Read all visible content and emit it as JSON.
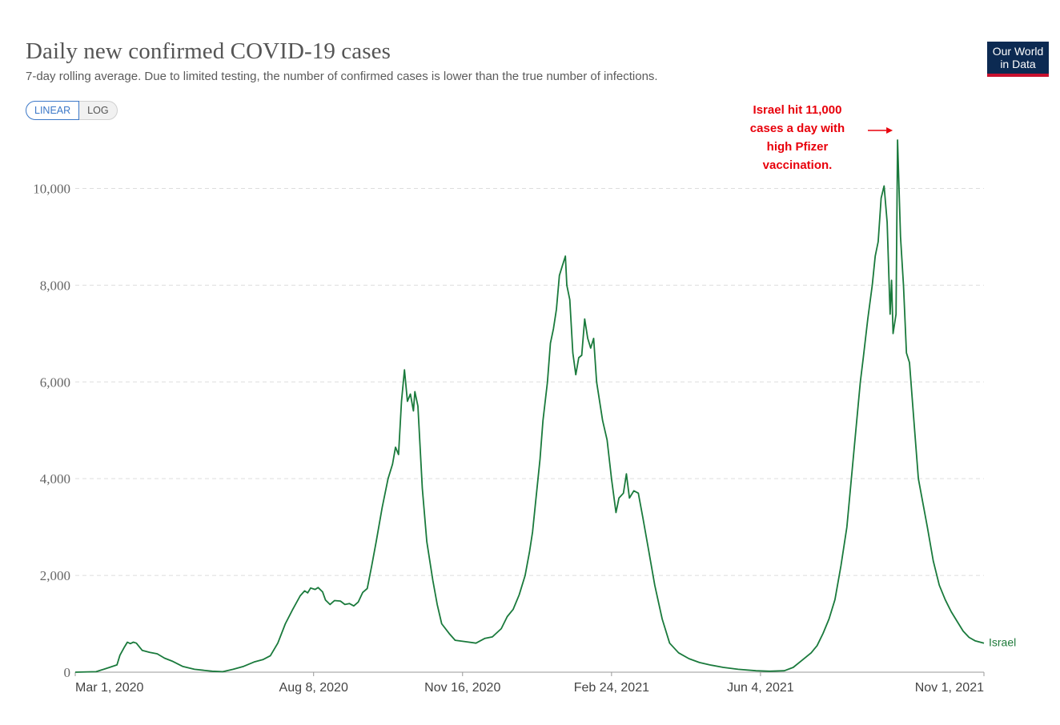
{
  "header": {
    "title": "Daily new confirmed COVID-19 cases",
    "subtitle": "7-day rolling average. Due to limited testing, the number of confirmed cases is lower than the true number of infections.",
    "logo_line1": "Our World",
    "logo_line2": "in Data"
  },
  "toggle": {
    "linear_label": "LINEAR",
    "log_label": "LOG",
    "selected": "LINEAR"
  },
  "colors": {
    "series": "#1a7a3c",
    "annotation": "#e8000b",
    "grid": "#dddddd",
    "logo_bg": "#0c2a52",
    "logo_bar": "#c8102e",
    "toggle_active": "#3c78c8"
  },
  "chart_data": {
    "type": "line",
    "title": "Daily new confirmed COVID-19 cases",
    "xlabel": "",
    "ylabel": "",
    "ylim": [
      0,
      11000
    ],
    "yticks": [
      0,
      2000,
      4000,
      6000,
      8000,
      10000
    ],
    "ytick_labels": [
      "0",
      "2,000",
      "4,000",
      "6,000",
      "8,000",
      "10,000"
    ],
    "xticks": [
      "2020-03-01",
      "2020-08-08",
      "2020-11-16",
      "2021-02-24",
      "2021-06-04",
      "2021-11-01"
    ],
    "xtick_labels": [
      "Mar 1, 2020",
      "Aug 8, 2020",
      "Nov 16, 2020",
      "Feb 24, 2021",
      "Jun 4, 2021",
      "Nov 1, 2021"
    ],
    "xlim": [
      "2020-03-01",
      "2021-11-01"
    ],
    "grid": "horizontal dashed",
    "series": [
      {
        "name": "Israel",
        "points": [
          [
            "2020-03-01",
            0
          ],
          [
            "2020-03-15",
            10
          ],
          [
            "2020-03-24",
            100
          ],
          [
            "2020-03-29",
            150
          ],
          [
            "2020-03-31",
            350
          ],
          [
            "2020-04-03",
            520
          ],
          [
            "2020-04-05",
            620
          ],
          [
            "2020-04-07",
            590
          ],
          [
            "2020-04-09",
            620
          ],
          [
            "2020-04-11",
            600
          ],
          [
            "2020-04-15",
            450
          ],
          [
            "2020-04-20",
            410
          ],
          [
            "2020-04-25",
            380
          ],
          [
            "2020-04-30",
            290
          ],
          [
            "2020-05-05",
            230
          ],
          [
            "2020-05-12",
            120
          ],
          [
            "2020-05-20",
            60
          ],
          [
            "2020-06-01",
            20
          ],
          [
            "2020-06-08",
            10
          ],
          [
            "2020-06-15",
            60
          ],
          [
            "2020-06-22",
            120
          ],
          [
            "2020-06-29",
            210
          ],
          [
            "2020-07-05",
            260
          ],
          [
            "2020-07-10",
            340
          ],
          [
            "2020-07-15",
            600
          ],
          [
            "2020-07-20",
            1000
          ],
          [
            "2020-07-25",
            1300
          ],
          [
            "2020-07-30",
            1580
          ],
          [
            "2020-08-02",
            1680
          ],
          [
            "2020-08-04",
            1640
          ],
          [
            "2020-08-06",
            1740
          ],
          [
            "2020-08-09",
            1710
          ],
          [
            "2020-08-11",
            1750
          ],
          [
            "2020-08-14",
            1660
          ],
          [
            "2020-08-16",
            1490
          ],
          [
            "2020-08-19",
            1400
          ],
          [
            "2020-08-22",
            1480
          ],
          [
            "2020-08-26",
            1470
          ],
          [
            "2020-08-29",
            1400
          ],
          [
            "2020-09-01",
            1420
          ],
          [
            "2020-09-04",
            1370
          ],
          [
            "2020-09-07",
            1450
          ],
          [
            "2020-09-10",
            1650
          ],
          [
            "2020-09-13",
            1730
          ],
          [
            "2020-09-16",
            2200
          ],
          [
            "2020-09-19",
            2700
          ],
          [
            "2020-09-23",
            3400
          ],
          [
            "2020-09-27",
            4000
          ],
          [
            "2020-09-30",
            4300
          ],
          [
            "2020-10-02",
            4650
          ],
          [
            "2020-10-04",
            4500
          ],
          [
            "2020-10-06",
            5600
          ],
          [
            "2020-10-08",
            6250
          ],
          [
            "2020-10-10",
            5600
          ],
          [
            "2020-10-12",
            5750
          ],
          [
            "2020-10-14",
            5400
          ],
          [
            "2020-10-15",
            5800
          ],
          [
            "2020-10-17",
            5500
          ],
          [
            "2020-10-20",
            3800
          ],
          [
            "2020-10-23",
            2700
          ],
          [
            "2020-10-27",
            1900
          ],
          [
            "2020-10-30",
            1400
          ],
          [
            "2020-11-02",
            1000
          ],
          [
            "2020-11-07",
            800
          ],
          [
            "2020-11-11",
            660
          ],
          [
            "2020-11-18",
            630
          ],
          [
            "2020-11-25",
            600
          ],
          [
            "2020-12-01",
            700
          ],
          [
            "2020-12-06",
            730
          ],
          [
            "2020-12-12",
            900
          ],
          [
            "2020-12-16",
            1150
          ],
          [
            "2020-12-20",
            1300
          ],
          [
            "2020-12-24",
            1600
          ],
          [
            "2020-12-28",
            2000
          ],
          [
            "2020-12-31",
            2500
          ],
          [
            "2021-01-02",
            2900
          ],
          [
            "2021-01-04",
            3500
          ],
          [
            "2021-01-07",
            4400
          ],
          [
            "2021-01-09",
            5200
          ],
          [
            "2021-01-12",
            6000
          ],
          [
            "2021-01-14",
            6800
          ],
          [
            "2021-01-16",
            7100
          ],
          [
            "2021-01-18",
            7500
          ],
          [
            "2021-01-20",
            8200
          ],
          [
            "2021-01-22",
            8400
          ],
          [
            "2021-01-24",
            8600
          ],
          [
            "2021-01-25",
            8000
          ],
          [
            "2021-01-27",
            7700
          ],
          [
            "2021-01-29",
            6600
          ],
          [
            "2021-01-31",
            6150
          ],
          [
            "2021-02-02",
            6500
          ],
          [
            "2021-02-04",
            6550
          ],
          [
            "2021-02-06",
            7300
          ],
          [
            "2021-02-08",
            6900
          ],
          [
            "2021-02-10",
            6700
          ],
          [
            "2021-02-12",
            6900
          ],
          [
            "2021-02-14",
            6000
          ],
          [
            "2021-02-18",
            5200
          ],
          [
            "2021-02-21",
            4800
          ],
          [
            "2021-02-24",
            4000
          ],
          [
            "2021-02-27",
            3300
          ],
          [
            "2021-03-01",
            3600
          ],
          [
            "2021-03-04",
            3700
          ],
          [
            "2021-03-06",
            4100
          ],
          [
            "2021-03-08",
            3600
          ],
          [
            "2021-03-11",
            3750
          ],
          [
            "2021-03-14",
            3700
          ],
          [
            "2021-03-17",
            3200
          ],
          [
            "2021-03-21",
            2500
          ],
          [
            "2021-03-25",
            1800
          ],
          [
            "2021-03-30",
            1100
          ],
          [
            "2021-04-04",
            600
          ],
          [
            "2021-04-10",
            400
          ],
          [
            "2021-04-17",
            280
          ],
          [
            "2021-04-24",
            200
          ],
          [
            "2021-05-01",
            150
          ],
          [
            "2021-05-10",
            100
          ],
          [
            "2021-05-20",
            60
          ],
          [
            "2021-06-01",
            30
          ],
          [
            "2021-06-10",
            20
          ],
          [
            "2021-06-20",
            30
          ],
          [
            "2021-06-26",
            100
          ],
          [
            "2021-07-02",
            250
          ],
          [
            "2021-07-08",
            400
          ],
          [
            "2021-07-12",
            550
          ],
          [
            "2021-07-16",
            800
          ],
          [
            "2021-07-20",
            1100
          ],
          [
            "2021-07-24",
            1500
          ],
          [
            "2021-07-28",
            2200
          ],
          [
            "2021-08-01",
            3000
          ],
          [
            "2021-08-04",
            4000
          ],
          [
            "2021-08-07",
            5000
          ],
          [
            "2021-08-10",
            6000
          ],
          [
            "2021-08-12",
            6500
          ],
          [
            "2021-08-15",
            7300
          ],
          [
            "2021-08-18",
            8000
          ],
          [
            "2021-08-20",
            8600
          ],
          [
            "2021-08-22",
            8900
          ],
          [
            "2021-08-24",
            9800
          ],
          [
            "2021-08-26",
            10050
          ],
          [
            "2021-08-28",
            9300
          ],
          [
            "2021-08-30",
            7400
          ],
          [
            "2021-08-31",
            8100
          ],
          [
            "2021-09-01",
            7000
          ],
          [
            "2021-09-03",
            7400
          ],
          [
            "2021-09-04",
            11000
          ],
          [
            "2021-09-06",
            9000
          ],
          [
            "2021-09-08",
            8000
          ],
          [
            "2021-09-10",
            6600
          ],
          [
            "2021-09-12",
            6400
          ],
          [
            "2021-09-15",
            5200
          ],
          [
            "2021-09-18",
            4000
          ],
          [
            "2021-09-21",
            3500
          ],
          [
            "2021-09-24",
            3000
          ],
          [
            "2021-09-28",
            2300
          ],
          [
            "2021-10-02",
            1800
          ],
          [
            "2021-10-06",
            1500
          ],
          [
            "2021-10-10",
            1250
          ],
          [
            "2021-10-14",
            1050
          ],
          [
            "2021-10-18",
            850
          ],
          [
            "2021-10-22",
            720
          ],
          [
            "2021-10-26",
            650
          ],
          [
            "2021-11-01",
            600
          ]
        ]
      }
    ],
    "annotations": [
      {
        "lines": [
          "Israel hit 11,000",
          "cases a day with",
          "high Pfizer",
          "vaccination."
        ],
        "points_to": [
          "2021-09-04",
          11000
        ]
      }
    ]
  }
}
